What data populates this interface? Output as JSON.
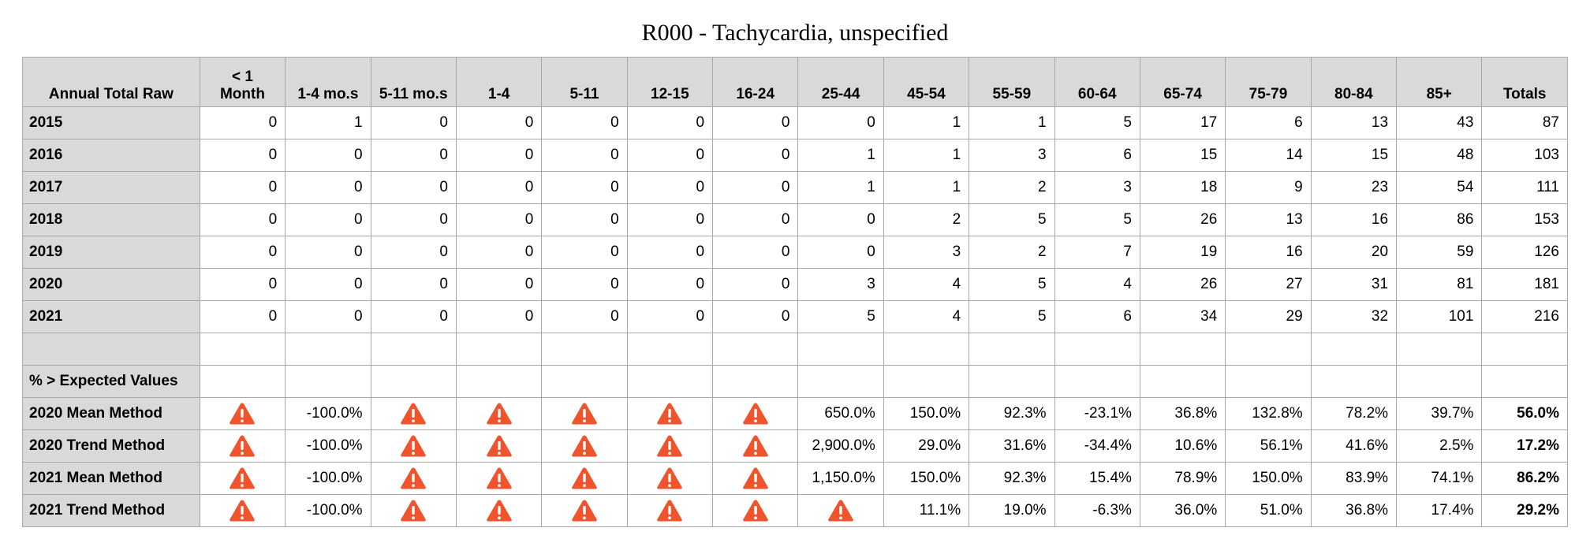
{
  "title": "R000 - Tachycardia, unspecified",
  "header": [
    "Annual Total Raw",
    "< 1 Month",
    "1-4 mo.s",
    "5-11 mo.s",
    "1-4",
    "5-11",
    "12-15",
    "16-24",
    "25-44",
    "45-54",
    "55-59",
    "60-64",
    "65-74",
    "75-79",
    "80-84",
    "85+",
    "Totals"
  ],
  "raw_rows": [
    {
      "label": "2015",
      "values": [
        "0",
        "1",
        "0",
        "0",
        "0",
        "0",
        "0",
        "0",
        "1",
        "1",
        "5",
        "17",
        "6",
        "13",
        "43",
        "87"
      ]
    },
    {
      "label": "2016",
      "values": [
        "0",
        "0",
        "0",
        "0",
        "0",
        "0",
        "0",
        "1",
        "1",
        "3",
        "6",
        "15",
        "14",
        "15",
        "48",
        "103"
      ]
    },
    {
      "label": "2017",
      "values": [
        "0",
        "0",
        "0",
        "0",
        "0",
        "0",
        "0",
        "1",
        "1",
        "2",
        "3",
        "18",
        "9",
        "23",
        "54",
        "111"
      ]
    },
    {
      "label": "2018",
      "values": [
        "0",
        "0",
        "0",
        "0",
        "0",
        "0",
        "0",
        "0",
        "2",
        "5",
        "5",
        "26",
        "13",
        "16",
        "86",
        "153"
      ]
    },
    {
      "label": "2019",
      "values": [
        "0",
        "0",
        "0",
        "0",
        "0",
        "0",
        "0",
        "0",
        "3",
        "2",
        "7",
        "19",
        "16",
        "20",
        "59",
        "126"
      ]
    },
    {
      "label": "2020",
      "values": [
        "0",
        "0",
        "0",
        "0",
        "0",
        "0",
        "0",
        "3",
        "4",
        "5",
        "4",
        "26",
        "27",
        "31",
        "81",
        "181"
      ]
    },
    {
      "label": "2021",
      "values": [
        "0",
        "0",
        "0",
        "0",
        "0",
        "0",
        "0",
        "5",
        "4",
        "5",
        "6",
        "34",
        "29",
        "32",
        "101",
        "216"
      ]
    }
  ],
  "section_label": "% > Expected Values",
  "warning_icon": "warning-triangle-icon",
  "warning_color": "#f0542d",
  "pct_rows": [
    {
      "label": "2020 Mean Method",
      "values": [
        "!",
        "-100.0%",
        "!",
        "!",
        "!",
        "!",
        "!",
        "650.0%",
        "150.0%",
        "92.3%",
        "-23.1%",
        "36.8%",
        "132.8%",
        "78.2%",
        "39.7%",
        "56.0%"
      ]
    },
    {
      "label": "2020 Trend Method",
      "values": [
        "!",
        "-100.0%",
        "!",
        "!",
        "!",
        "!",
        "!",
        "2,900.0%",
        "29.0%",
        "31.6%",
        "-34.4%",
        "10.6%",
        "56.1%",
        "41.6%",
        "2.5%",
        "17.2%"
      ]
    },
    {
      "label": "2021 Mean Method",
      "values": [
        "!",
        "-100.0%",
        "!",
        "!",
        "!",
        "!",
        "!",
        "1,150.0%",
        "150.0%",
        "92.3%",
        "15.4%",
        "78.9%",
        "150.0%",
        "83.9%",
        "74.1%",
        "86.2%"
      ]
    },
    {
      "label": "2021 Trend Method",
      "values": [
        "!",
        "-100.0%",
        "!",
        "!",
        "!",
        "!",
        "!",
        "!",
        "11.1%",
        "19.0%",
        "-6.3%",
        "36.0%",
        "51.0%",
        "36.8%",
        "17.4%",
        "29.2%"
      ]
    }
  ]
}
